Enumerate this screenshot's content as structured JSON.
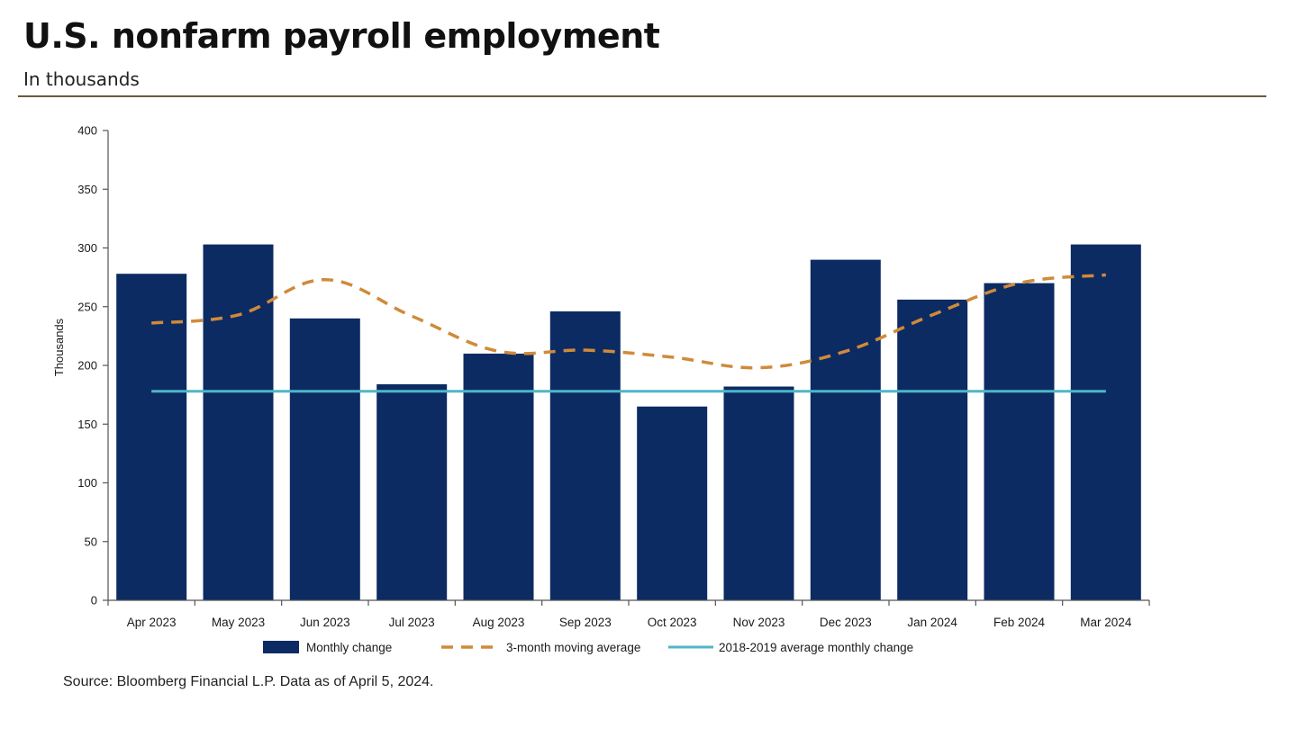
{
  "header": {
    "title": "U.S. nonfarm payroll employment",
    "subtitle": "In thousands"
  },
  "footer": {
    "source": "Source: Bloomberg Financial L.P. Data as of April 5, 2024."
  },
  "colors": {
    "bar": "#0c2b63",
    "moving_average": "#d08a3a",
    "baseline": "#4fb6c8",
    "axis": "#555555",
    "rule": "#6b5a3e"
  },
  "chart_data": {
    "type": "bar",
    "categories": [
      "Apr 2023",
      "May 2023",
      "Jun 2023",
      "Jul 2023",
      "Aug 2023",
      "Sep 2023",
      "Oct 2023",
      "Nov 2023",
      "Dec 2023",
      "Jan 2024",
      "Feb 2024",
      "Mar 2024"
    ],
    "series": [
      {
        "name": "Monthly change",
        "kind": "bar",
        "values": [
          278,
          303,
          240,
          184,
          210,
          246,
          165,
          182,
          290,
          256,
          270,
          303
        ]
      },
      {
        "name": "3-month moving average",
        "kind": "line-dashed",
        "values": [
          236,
          243,
          273,
          242,
          212,
          213,
          207,
          198,
          212,
          243,
          270,
          277
        ]
      },
      {
        "name": "2018-2019 average monthly change",
        "kind": "line-flat",
        "values": [
          178,
          178,
          178,
          178,
          178,
          178,
          178,
          178,
          178,
          178,
          178,
          178
        ]
      }
    ],
    "xlabel": "",
    "ylabel": "Thousands",
    "ylim": [
      0,
      400
    ],
    "yticks": [
      0,
      50,
      100,
      150,
      200,
      250,
      300,
      350,
      400
    ],
    "grid": false,
    "legend_position": "bottom"
  }
}
